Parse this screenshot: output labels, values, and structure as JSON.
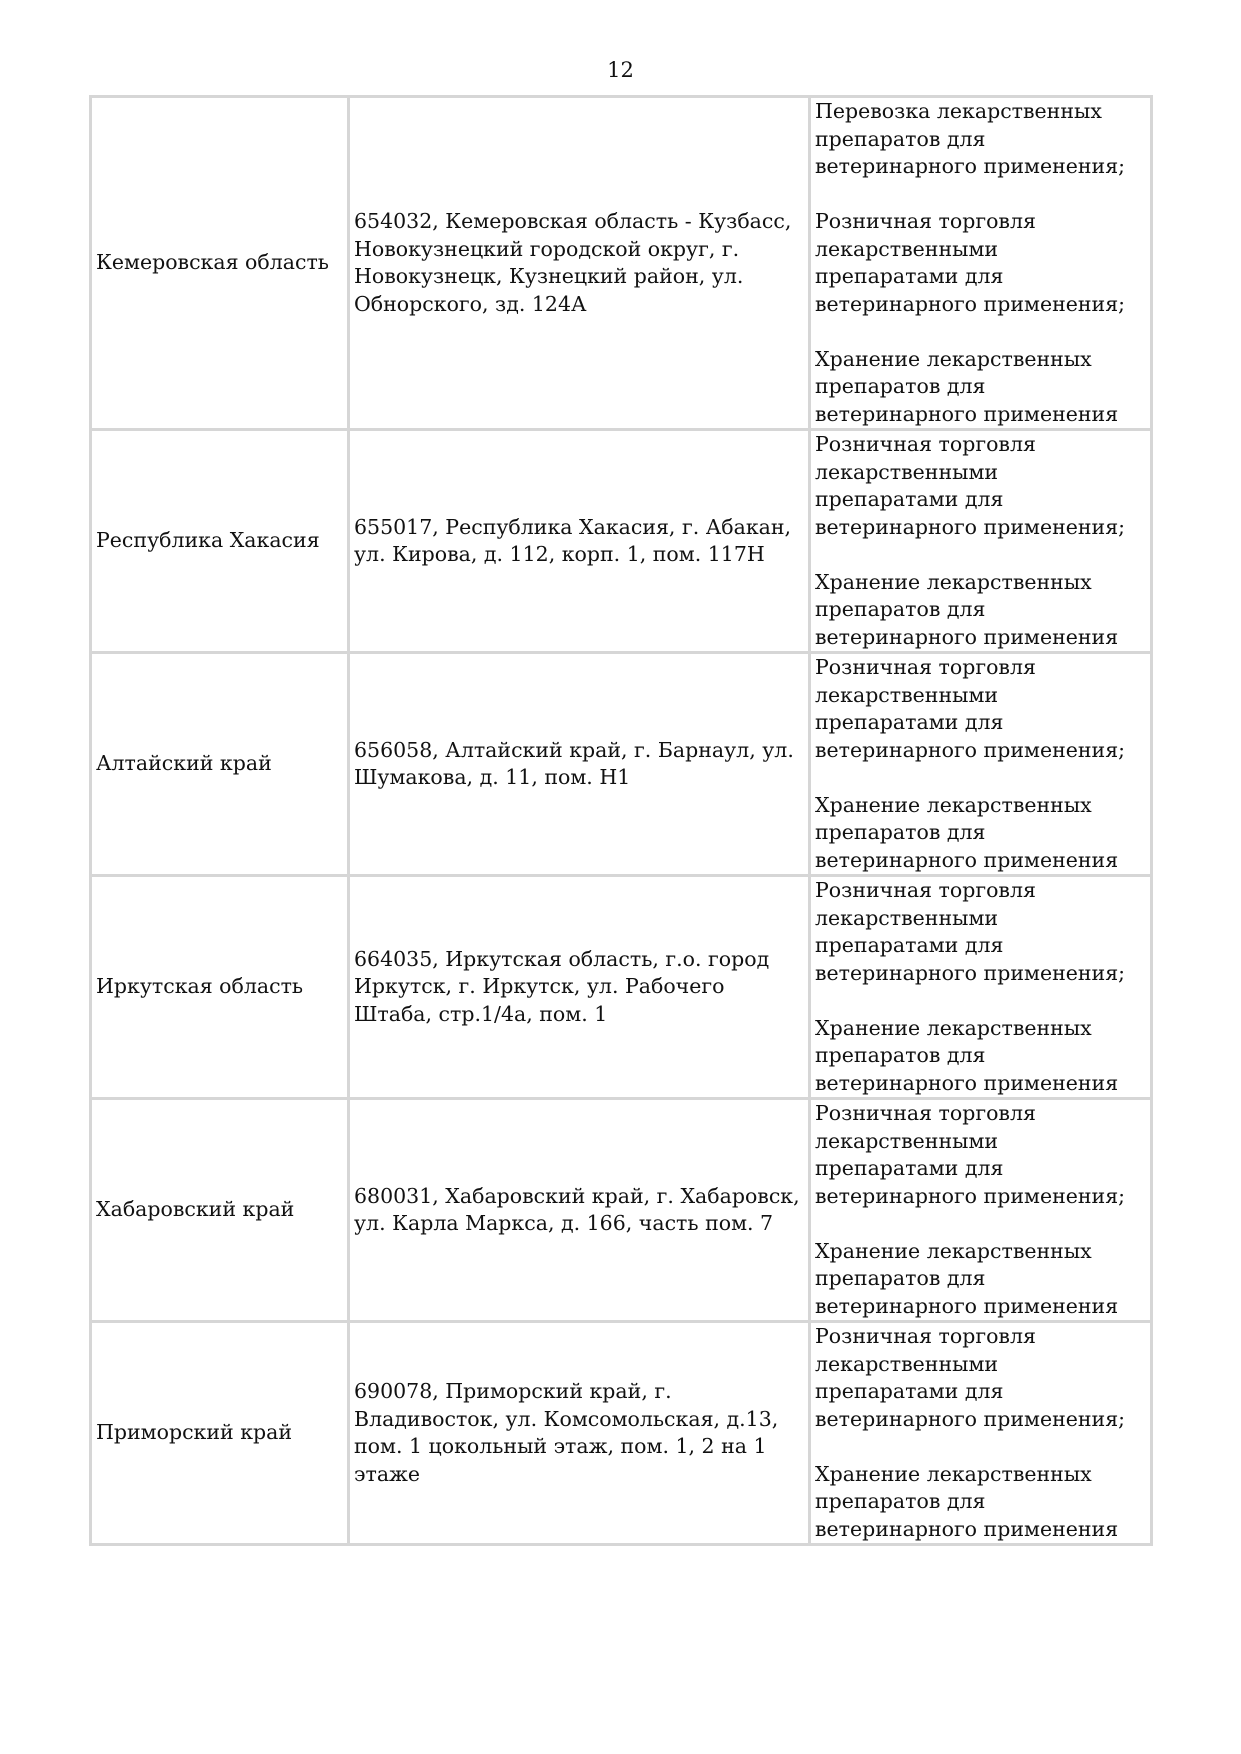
{
  "page_number": "12",
  "rows": [
    {
      "region": "Кемеровская область",
      "address": "654032, Кемеровская область - Кузбасс, Новокузнецкий городской округ, г. Новокузнецк, Кузнецкий район, ул. Обнорского, зд. 124А",
      "activities": [
        "Перевозка лекарственных препаратов для ветеринарного применения;",
        "Розничная торговля лекарственными препаратами для ветеринарного применения;",
        "Хранение лекарственных препаратов для ветеринарного применения"
      ],
      "h": 335
    },
    {
      "region": "Республика Хакасия",
      "address": "655017, Республика Хакасия, г. Абакан, ул. Кирова, д. 112, корп. 1, пом. 117Н",
      "activities": [
        "Розничная торговля лекарственными препаратами для ветеринарного применения;",
        "Хранение лекарственных препаратов для ветеринарного применения"
      ]
    },
    {
      "region": "Алтайский край",
      "address": "656058, Алтайский край, г. Барнаул, ул. Шумакова, д. 11, пом. Н1",
      "activities": [
        "Розничная торговля лекарственными препаратами для ветеринарного применения;",
        "Хранение лекарственных препаратов для ветеринарного применения"
      ]
    },
    {
      "region": "Иркутская область",
      "address": "664035, Иркутская область, г.о. город Иркутск, г. Иркутск, ул. Рабочего Штаба, стр.1/4а, пом. 1",
      "activities": [
        "Розничная торговля лекарственными препаратами для ветеринарного применения;",
        "Хранение лекарственных препаратов для ветеринарного применения"
      ]
    },
    {
      "region": "Хабаровский край",
      "address": "680031, Хабаровский край, г. Хабаровск, ул. Карла Маркса, д. 166, часть пом. 7",
      "activities": [
        "Розничная торговля лекарственными препаратами для ветеринарного применения;",
        "Хранение лекарственных препаратов для ветеринарного применения"
      ]
    },
    {
      "region": "Приморский край",
      "address": "690078, Приморский край, г. Владивосток, ул. Комсомольская, д.13, пом. 1 цокольный этаж, пом. 1, 2 на 1 этаже",
      "activities": [
        "Розничная торговля лекарственными препаратами для ветеринарного применения;",
        "Хранение лекарственных препаратов для ветеринарного применения"
      ]
    }
  ]
}
